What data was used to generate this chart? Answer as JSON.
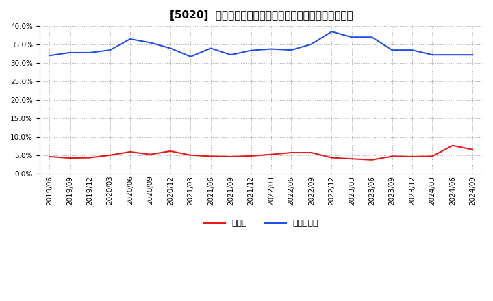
{
  "title": "[5020]  現預金、有利子負債の総資産に対する比率の推移",
  "ylim": [
    0.0,
    0.4
  ],
  "yticks": [
    0.0,
    0.05,
    0.1,
    0.15,
    0.2,
    0.25,
    0.3,
    0.35,
    0.4
  ],
  "dates": [
    "2019/06",
    "2019/09",
    "2019/12",
    "2020/03",
    "2020/06",
    "2020/09",
    "2020/12",
    "2021/03",
    "2021/06",
    "2021/09",
    "2021/12",
    "2022/03",
    "2022/06",
    "2022/09",
    "2022/12",
    "2023/03",
    "2023/06",
    "2023/09",
    "2023/12",
    "2024/03",
    "2024/06",
    "2024/09"
  ],
  "cash": [
    0.046,
    0.042,
    0.043,
    0.05,
    0.059,
    0.052,
    0.061,
    0.05,
    0.047,
    0.046,
    0.048,
    0.052,
    0.057,
    0.057,
    0.043,
    0.04,
    0.037,
    0.047,
    0.046,
    0.047,
    0.076,
    0.065
  ],
  "debt": [
    0.32,
    0.328,
    0.328,
    0.335,
    0.365,
    0.355,
    0.34,
    0.317,
    0.34,
    0.322,
    0.334,
    0.338,
    0.335,
    0.351,
    0.385,
    0.37,
    0.37,
    0.335,
    0.335,
    0.322,
    0.322,
    0.322
  ],
  "cash_color": "#e8191a",
  "debt_color": "#1f4fe8",
  "background_color": "#ffffff",
  "grid_color": "#aaaaaa",
  "legend_cash": "現預金",
  "legend_debt": "有利子負債",
  "title_fontsize": 11,
  "tick_fontsize": 7.5,
  "legend_fontsize": 9
}
